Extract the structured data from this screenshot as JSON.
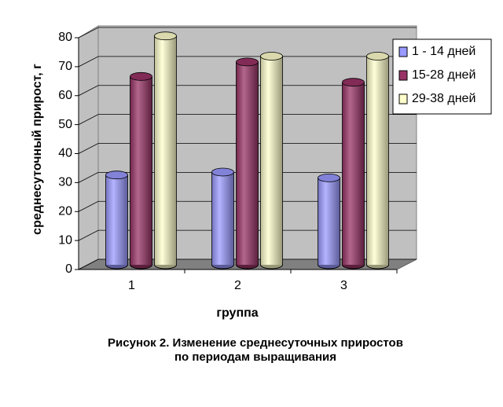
{
  "chart_data": {
    "type": "bar3d",
    "caption": [
      "Рисунок 2. Изменение среднесуточных приростов",
      "по периодам выращивания"
    ],
    "x_label": "группа",
    "y_label": "среднесуточный прирост, г",
    "categories": [
      "1",
      "2",
      "3"
    ],
    "series": [
      {
        "name": "1 - 14 дней",
        "color": "#9999ff",
        "values": [
          31,
          32,
          30
        ]
      },
      {
        "name": "15-28 дней",
        "color": "#993366",
        "values": [
          65,
          70,
          63
        ]
      },
      {
        "name": "29-38 дней",
        "color": "#ffffcc",
        "values": [
          79,
          72,
          72
        ]
      }
    ],
    "ylim": [
      0,
      80
    ],
    "yticks": [
      0,
      10,
      20,
      30,
      40,
      50,
      60,
      70,
      80
    ],
    "grid": true,
    "legend": "right"
  }
}
